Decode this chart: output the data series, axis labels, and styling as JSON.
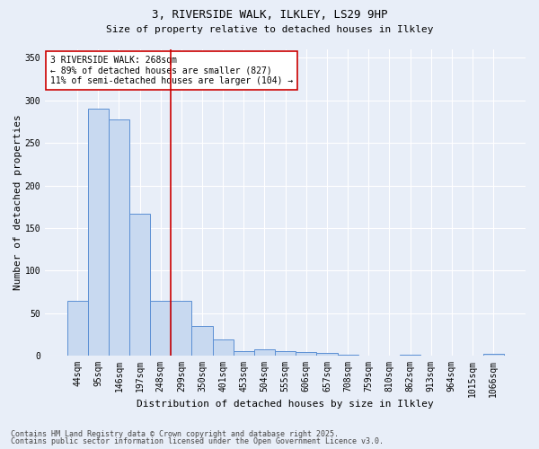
{
  "title1": "3, RIVERSIDE WALK, ILKLEY, LS29 9HP",
  "title2": "Size of property relative to detached houses in Ilkley",
  "xlabel": "Distribution of detached houses by size in Ilkley",
  "ylabel": "Number of detached properties",
  "categories": [
    "44sqm",
    "95sqm",
    "146sqm",
    "197sqm",
    "248sqm",
    "299sqm",
    "350sqm",
    "401sqm",
    "453sqm",
    "504sqm",
    "555sqm",
    "606sqm",
    "657sqm",
    "708sqm",
    "759sqm",
    "810sqm",
    "862sqm",
    "913sqm",
    "964sqm",
    "1015sqm",
    "1066sqm"
  ],
  "values": [
    65,
    290,
    278,
    167,
    65,
    65,
    35,
    19,
    6,
    8,
    5,
    4,
    3,
    1,
    0,
    0,
    1,
    0,
    0,
    0,
    2
  ],
  "bar_color": "#c8d9f0",
  "bar_edge_color": "#5b8fd4",
  "vline_x": 4.5,
  "vline_color": "#cc0000",
  "annotation_text": "3 RIVERSIDE WALK: 268sqm\n← 89% of detached houses are smaller (827)\n11% of semi-detached houses are larger (104) →",
  "annotation_box_color": "#ffffff",
  "annotation_box_edge": "#cc0000",
  "bg_color": "#e8eef8",
  "grid_color": "#ffffff",
  "footer1": "Contains HM Land Registry data © Crown copyright and database right 2025.",
  "footer2": "Contains public sector information licensed under the Open Government Licence v3.0.",
  "ylim": [
    0,
    360
  ],
  "yticks": [
    0,
    50,
    100,
    150,
    200,
    250,
    300,
    350
  ],
  "title1_fontsize": 9,
  "title2_fontsize": 8,
  "tick_fontsize": 7,
  "ylabel_fontsize": 8,
  "xlabel_fontsize": 8,
  "annotation_fontsize": 7,
  "footer_fontsize": 6
}
